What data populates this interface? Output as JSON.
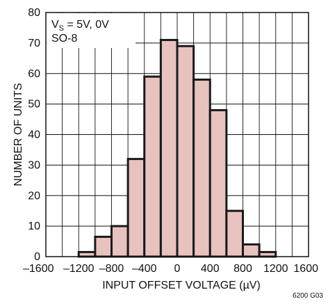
{
  "chart_data": {
    "type": "bar",
    "title": "",
    "xlabel": "INPUT OFFSET VOLTAGE (µV)",
    "ylabel": "NUMBER OF UNITS",
    "xlim": [
      -1600,
      1600
    ],
    "ylim": [
      0,
      80
    ],
    "x_ticks": [
      -1600,
      -1200,
      -800,
      -400,
      0,
      400,
      800,
      1200,
      1600
    ],
    "x_tick_labels": [
      "–1600",
      "–1200",
      "–800",
      "–400",
      "0",
      "400",
      "800",
      "1200",
      "1600"
    ],
    "y_ticks": [
      0,
      10,
      20,
      30,
      40,
      50,
      60,
      70,
      80
    ],
    "y_tick_labels": [
      "0",
      "10",
      "20",
      "30",
      "40",
      "50",
      "60",
      "70",
      "80"
    ],
    "bin_width": 200,
    "bins": [
      {
        "x0": -1200,
        "x1": -1000,
        "value": 1.5
      },
      {
        "x0": -1000,
        "x1": -800,
        "value": 6.5
      },
      {
        "x0": -800,
        "x1": -600,
        "value": 10
      },
      {
        "x0": -600,
        "x1": -400,
        "value": 32
      },
      {
        "x0": -400,
        "x1": -200,
        "value": 59
      },
      {
        "x0": -200,
        "x1": 0,
        "value": 71
      },
      {
        "x0": 0,
        "x1": 200,
        "value": 69
      },
      {
        "x0": 200,
        "x1": 400,
        "value": 58
      },
      {
        "x0": 400,
        "x1": 600,
        "value": 48
      },
      {
        "x0": 600,
        "x1": 800,
        "value": 15
      },
      {
        "x0": 800,
        "x1": 1000,
        "value": 4
      },
      {
        "x0": 1000,
        "x1": 1200,
        "value": 1.5
      }
    ],
    "grid": true,
    "annotation": {
      "line1_prefix": "V",
      "line1_sub": "S",
      "line1_suffix": " = 5V, 0V",
      "line2": "SO-8"
    },
    "figure_code": "6200 G03",
    "colors": {
      "bar_fill": "#e8c2be",
      "bar_stroke": "#1a1a1a",
      "grid": "#111111",
      "axis": "#111111"
    }
  }
}
